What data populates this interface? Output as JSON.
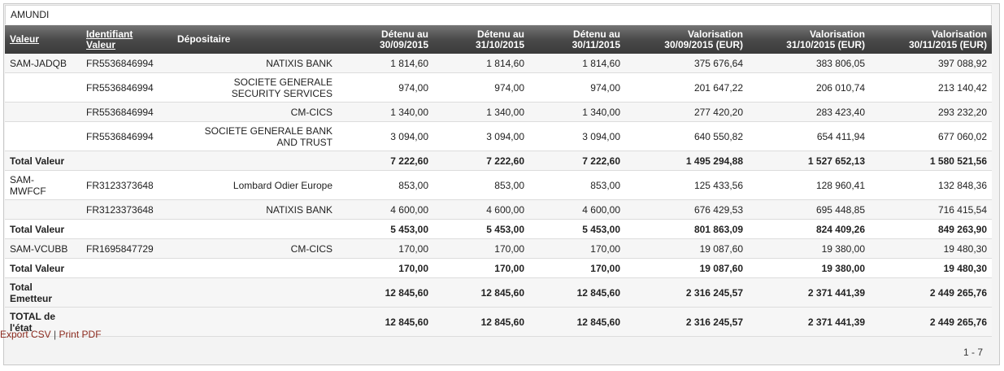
{
  "issuer": "AMUNDI",
  "columns": {
    "valeur": "Valeur",
    "identifiant_1": "Identifiant",
    "identifiant_2": "Valeur",
    "depositaire": "Dépositaire",
    "detenu_sep_1": "Détenu au",
    "detenu_sep_2": "30/09/2015",
    "detenu_oct_1": "Détenu au",
    "detenu_oct_2": "31/10/2015",
    "detenu_nov_1": "Détenu au",
    "detenu_nov_2": "30/11/2015",
    "valo_sep_1": "Valorisation",
    "valo_sep_2": "30/09/2015 (EUR)",
    "valo_oct_1": "Valorisation",
    "valo_oct_2": "31/10/2015 (EUR)",
    "valo_nov_1": "Valorisation",
    "valo_nov_2": "30/11/2015 (EUR)"
  },
  "rows": [
    {
      "valeur": "SAM-JADQB",
      "identifiant": "FR5536846994",
      "dep1": "NATIXIS BANK",
      "dep2": "",
      "d1": "1 814,60",
      "d2": "1 814,60",
      "d3": "1 814,60",
      "v1": "375 676,64",
      "v2": "383 806,05",
      "v3": "397 088,92"
    },
    {
      "valeur": "",
      "identifiant": "FR5536846994",
      "dep1": "SOCIETE GENERALE",
      "dep2": "SECURITY SERVICES",
      "d1": "974,00",
      "d2": "974,00",
      "d3": "974,00",
      "v1": "201 647,22",
      "v2": "206 010,74",
      "v3": "213 140,42"
    },
    {
      "valeur": "",
      "identifiant": "FR5536846994",
      "dep1": "CM-CICS",
      "dep2": "",
      "d1": "1 340,00",
      "d2": "1 340,00",
      "d3": "1 340,00",
      "v1": "277 420,20",
      "v2": "283 423,40",
      "v3": "293 232,20"
    },
    {
      "valeur": "",
      "identifiant": "FR5536846994",
      "dep1": "SOCIETE GENERALE BANK",
      "dep2": "AND TRUST",
      "d1": "3 094,00",
      "d2": "3 094,00",
      "d3": "3 094,00",
      "v1": "640 550,82",
      "v2": "654 411,94",
      "v3": "677 060,02"
    },
    {
      "valeur": "Total Valeur",
      "identifiant": "",
      "dep1": "",
      "dep2": "",
      "d1": "7 222,60",
      "d2": "7 222,60",
      "d3": "7 222,60",
      "v1": "1 495 294,88",
      "v2": "1 527 652,13",
      "v3": "1 580 521,56"
    },
    {
      "valeur": "SAM-",
      "valeur2": "MWFCF",
      "identifiant": "FR3123373648",
      "dep1": "Lombard Odier Europe",
      "dep2": "",
      "d1": "853,00",
      "d2": "853,00",
      "d3": "853,00",
      "v1": "125 433,56",
      "v2": "128 960,41",
      "v3": "132 848,36"
    },
    {
      "valeur": "",
      "identifiant": "FR3123373648",
      "dep1": "NATIXIS BANK",
      "dep2": "",
      "d1": "4 600,00",
      "d2": "4 600,00",
      "d3": "4 600,00",
      "v1": "676 429,53",
      "v2": "695 448,85",
      "v3": "716 415,54"
    },
    {
      "valeur": "Total Valeur",
      "identifiant": "",
      "dep1": "",
      "dep2": "",
      "d1": "5 453,00",
      "d2": "5 453,00",
      "d3": "5 453,00",
      "v1": "801 863,09",
      "v2": "824 409,26",
      "v3": "849 263,90"
    },
    {
      "valeur": "SAM-VCUBB",
      "identifiant": "FR1695847729",
      "dep1": "CM-CICS",
      "dep2": "",
      "d1": "170,00",
      "d2": "170,00",
      "d3": "170,00",
      "v1": "19 087,60",
      "v2": "19 380,00",
      "v3": "19 480,30"
    },
    {
      "valeur": "Total Valeur",
      "identifiant": "",
      "dep1": "",
      "dep2": "",
      "d1": "170,00",
      "d2": "170,00",
      "d3": "170,00",
      "v1": "19 087,60",
      "v2": "19 380,00",
      "v3": "19 480,30"
    },
    {
      "valeur": "Total",
      "valeur2": "Emetteur",
      "identifiant": "",
      "dep1": "",
      "dep2": "",
      "d1": "12 845,60",
      "d2": "12 845,60",
      "d3": "12 845,60",
      "v1": "2 316 245,57",
      "v2": "2 371 441,39",
      "v3": "2 449 265,76"
    },
    {
      "valeur": "TOTAL de",
      "valeur2": "l'état",
      "identifiant": "",
      "dep1": "",
      "dep2": "",
      "d1": "12 845,60",
      "d2": "12 845,60",
      "d3": "12 845,60",
      "v1": "2 316 245,57",
      "v2": "2 371 441,39",
      "v3": "2 449 265,76"
    }
  ],
  "footer": {
    "export_csv": "Export CSV",
    "separator": "|",
    "print_pdf": "Print PDF",
    "pager": "1 - 7"
  }
}
